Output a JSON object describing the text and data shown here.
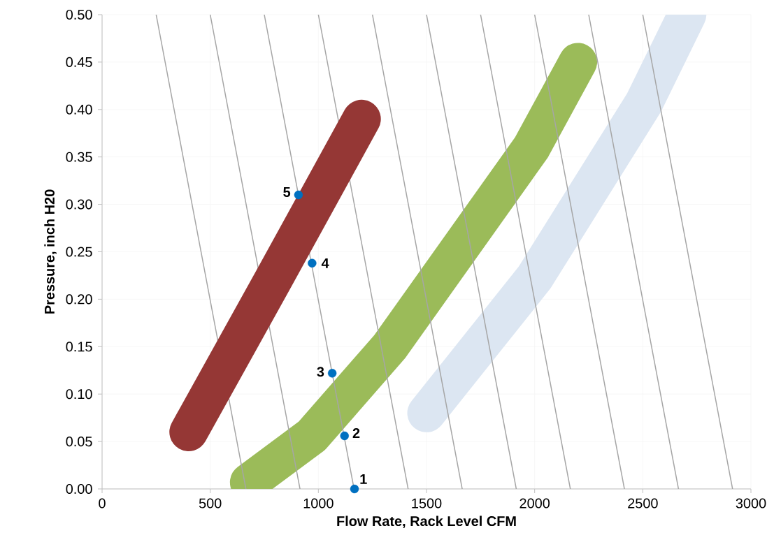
{
  "chart_data": {
    "type": "line",
    "xlabel": "Flow Rate, Rack Level CFM",
    "ylabel": "Pressure, inch H20",
    "xlim": [
      0,
      3000
    ],
    "xticks": [
      0,
      500,
      1000,
      1500,
      2000,
      2500,
      3000
    ],
    "ylim": [
      0,
      0.5
    ],
    "yticks": [
      {
        "value": 0,
        "label": "0.00"
      },
      {
        "value": 0.05,
        "label": "0.05"
      },
      {
        "value": 0.1,
        "label": "0.10"
      },
      {
        "value": 0.15,
        "label": "0.15"
      },
      {
        "value": 0.2,
        "label": "0.20"
      },
      {
        "value": 0.25,
        "label": "0.25"
      },
      {
        "value": 0.3,
        "label": "0.30"
      },
      {
        "value": 0.35,
        "label": "0.35"
      },
      {
        "value": 0.4,
        "label": "0.40"
      },
      {
        "value": 0.45,
        "label": "0.45"
      },
      {
        "value": 0.5,
        "label": "0.50"
      }
    ],
    "grid": true,
    "series": [
      {
        "color": "#dce6f2",
        "x": [
          1500,
          2000,
          2505,
          2705
        ],
        "values": [
          0.08,
          0.223,
          0.407,
          0.5
        ]
      },
      {
        "color": "#9bbb59",
        "x": [
          680,
          970,
          1330,
          1985,
          2200
        ],
        "values": [
          0.007,
          0.056,
          0.15,
          0.36,
          0.45
        ]
      },
      {
        "color": "#a6a6a6",
        "x": [
          250,
          665
        ],
        "values": [
          0.5,
          0
        ]
      },
      {
        "color": "#a6a6a6",
        "x": [
          500,
          915
        ],
        "values": [
          0.5,
          0
        ]
      },
      {
        "color": "#a6a6a6",
        "x": [
          750,
          1165
        ],
        "values": [
          0.5,
          0
        ]
      },
      {
        "color": "#a6a6a6",
        "x": [
          1000,
          1415
        ],
        "values": [
          0.5,
          0
        ]
      },
      {
        "color": "#a6a6a6",
        "x": [
          1250,
          1665
        ],
        "values": [
          0.5,
          0
        ]
      },
      {
        "color": "#a6a6a6",
        "x": [
          1500,
          1915
        ],
        "values": [
          0.5,
          0
        ]
      },
      {
        "color": "#a6a6a6",
        "x": [
          1750,
          2165
        ],
        "values": [
          0.5,
          0
        ]
      },
      {
        "color": "#a6a6a6",
        "x": [
          2000,
          2415
        ],
        "values": [
          0.5,
          0
        ]
      },
      {
        "color": "#a6a6a6",
        "x": [
          2250,
          2665
        ],
        "values": [
          0.5,
          0
        ]
      },
      {
        "color": "#a6a6a6",
        "x": [
          2500,
          2915
        ],
        "values": [
          0.5,
          0
        ]
      },
      {
        "color": "#953735",
        "x": [
          400,
          790,
          1200
        ],
        "values": [
          0.06,
          0.22,
          0.39
        ]
      },
      {
        "type": "scatter",
        "color": "#0070c0",
        "marker": "circle",
        "x": [
          1167,
          1121,
          1064,
          971,
          908
        ],
        "values": [
          0,
          0.056,
          0.122,
          0.238,
          0.31
        ]
      }
    ],
    "annotations": [
      {
        "text": "1",
        "x": 1167,
        "y": 0
      },
      {
        "text": "2",
        "x": 1121,
        "y": 0.056
      },
      {
        "text": "3",
        "x": 1064,
        "y": 0.122
      },
      {
        "text": "4",
        "x": 971,
        "y": 0.238
      },
      {
        "text": "5",
        "x": 908,
        "y": 0.31
      }
    ]
  }
}
